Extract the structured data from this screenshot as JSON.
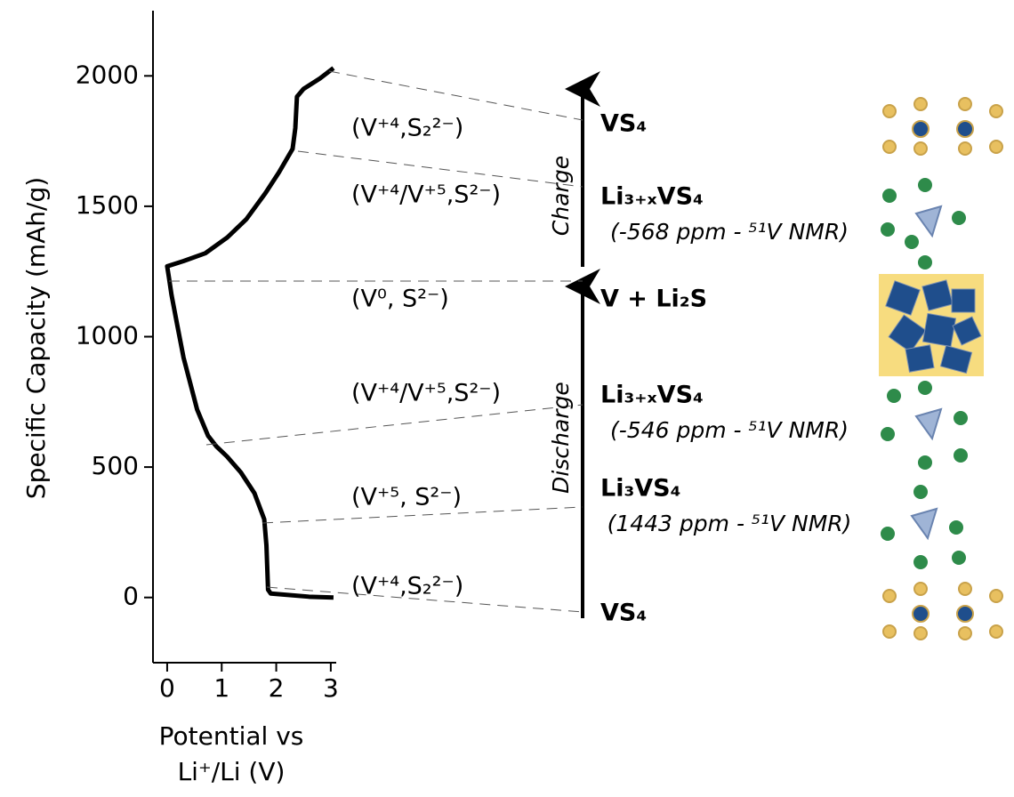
{
  "chart_data": {
    "type": "line",
    "ylabel": "Specific Capacity (mAh/g)",
    "xlabel": "Potential vs Li⁺/Li (V)",
    "xlim": [
      -0.26,
      3.1
    ],
    "ylim": [
      -250,
      2250
    ],
    "xticks": [
      0,
      1,
      2,
      3
    ],
    "yticks": [
      0,
      500,
      1000,
      1500,
      2000
    ],
    "x": [
      3.05,
      2.6,
      1.9,
      1.85,
      1.82,
      1.78,
      1.6,
      1.35,
      1.1,
      0.9,
      0.75,
      0.55,
      0.45,
      0.3,
      0.18,
      0.08,
      0.03,
      0.0,
      0.3,
      0.7,
      1.1,
      1.45,
      1.8,
      2.05,
      2.3,
      2.35,
      2.38,
      2.5,
      2.8,
      3.05
    ],
    "color": "#000000",
    "values": [
      0,
      3,
      15,
      30,
      200,
      300,
      400,
      480,
      540,
      580,
      620,
      720,
      800,
      920,
      1050,
      1160,
      1230,
      1270,
      1290,
      1320,
      1380,
      1450,
      1550,
      1630,
      1720,
      1800,
      1920,
      1950,
      1990,
      2030
    ],
    "regions": [
      "(V⁺⁴,S₂²⁻)",
      "(V⁺⁴/V⁺⁵,S²⁻)",
      "(V⁰, S²⁻)",
      "(V⁺⁴/V⁺⁵,S²⁻)",
      "(V⁺⁵, S²⁻)",
      "(V⁺⁴,S₂²⁻)"
    ],
    "states": [
      {
        "label": "VS₄"
      },
      {
        "label": "Li₃₊ₓVS₄",
        "note": "(-568 ppm - ⁵¹V NMR)"
      },
      {
        "label": "V + Li₂S"
      },
      {
        "label": "Li₃₊ₓVS₄",
        "note": "(-546 ppm - ⁵¹V NMR)"
      },
      {
        "label": "Li₃VS₄",
        "note": "(1443 ppm - ⁵¹V NMR)"
      },
      {
        "label": "VS₄"
      }
    ],
    "arrows": [
      "Charge",
      "Discharge"
    ]
  }
}
